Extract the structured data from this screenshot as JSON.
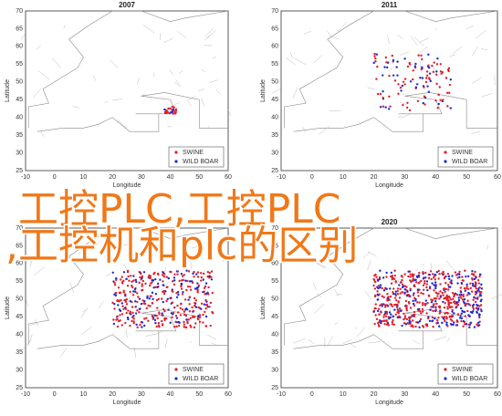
{
  "panels": [
    {
      "title": "2007"
    },
    {
      "title": "2011"
    },
    {},
    {
      "title": "2020"
    }
  ],
  "y_label": "Latitude",
  "x_label": "Longitude",
  "yticks": [
    25,
    30,
    35,
    40,
    45,
    50,
    55,
    60,
    65,
    70
  ],
  "xticks": [
    -10,
    0,
    10,
    20,
    30,
    40,
    50,
    60
  ],
  "legend": [
    "SWINE",
    "WILD BOAR"
  ],
  "overlay": [
    "工控PLC,工控PLC",
    ",工控机和plc的区别"
  ]
}
